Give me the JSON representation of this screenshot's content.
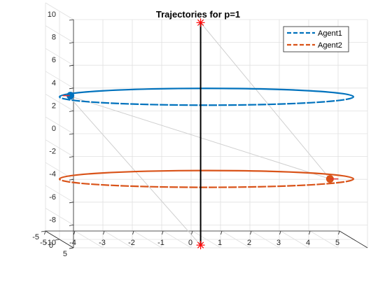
{
  "chart_data": {
    "type": "line",
    "title": "Trajectories for p=1",
    "xlabel": "",
    "ylabel": "",
    "zlabel": "",
    "view": "3d",
    "grid": true,
    "xlim": [
      -5,
      5
    ],
    "ylim": [
      -5,
      5
    ],
    "zlim": [
      -10,
      10
    ],
    "x_ticks": [
      "-5",
      "-4",
      "-3",
      "-2",
      "-1",
      "0",
      "1",
      "2",
      "3",
      "4",
      "5"
    ],
    "y_ticks": [
      "-5",
      "0",
      "5"
    ],
    "z_ticks": [
      "-10",
      "-8",
      "-6",
      "-4",
      "-2",
      "0",
      "2",
      "4",
      "6",
      "8",
      "10"
    ],
    "legend": {
      "position": "top-right",
      "entries": [
        "Agent1",
        "Agent2"
      ]
    },
    "series": [
      {
        "name": "Agent1",
        "color": "#0072BD",
        "shape": "circle",
        "center": [
          0,
          0
        ],
        "radius": 5,
        "z": 2.5,
        "start_point": [
          -4.7,
          2.6
        ]
      },
      {
        "name": "Agent2",
        "color": "#D95319",
        "shape": "circle",
        "center": [
          0,
          0
        ],
        "radius": 5,
        "z": -4.7,
        "start_point": [
          4.2,
          -4.7
        ]
      }
    ],
    "vertical_segment": {
      "color": "#000000",
      "x": -0.2,
      "z_top": 9,
      "z_bottom": -10.5,
      "marker": "asterisk",
      "marker_color": "#FF0000"
    }
  }
}
